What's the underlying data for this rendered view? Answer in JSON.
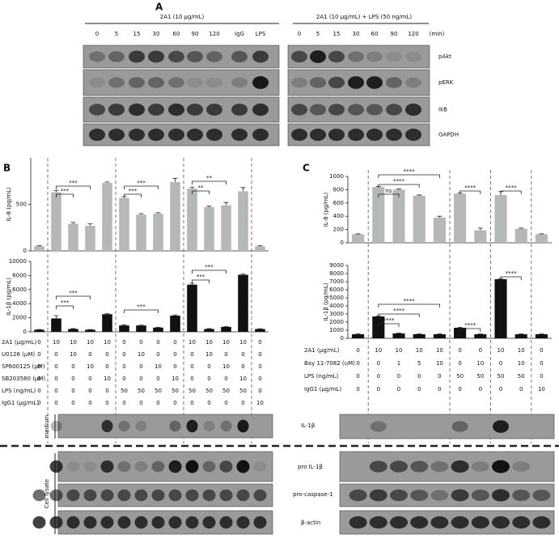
{
  "panels": [
    "A",
    "B",
    "C"
  ],
  "panel_a": {
    "headers": [
      "2A1 (10 μg/mL)",
      "2A1 (10 μg/mL) + LPS (50 ng/mL)"
    ],
    "lanes_left": [
      "0",
      "5",
      "15",
      "30",
      "60",
      "90",
      "120",
      "IgG",
      "LPS"
    ],
    "lanes_right": [
      "0",
      "5",
      "15",
      "30",
      "60",
      "90",
      "120",
      "(min)"
    ],
    "blots": [
      "pAkt",
      "pERK",
      "IkB",
      "GAPDH"
    ]
  },
  "chart_data": [
    {
      "type": "bar",
      "y_label": "IL-8 (pg/mL)",
      "color": "#b5b9b5",
      "values": [
        50,
        630,
        290,
        270,
        730,
        570,
        390,
        400,
        740,
        670,
        470,
        490,
        640,
        50
      ],
      "errors": [
        5,
        20,
        15,
        20,
        10,
        15,
        10,
        10,
        40,
        15,
        10,
        30,
        40,
        5
      ],
      "ylim": [
        0,
        1000
      ],
      "yticks": [
        0,
        500
      ],
      "annotations": [
        "***",
        "***",
        "***",
        "***",
        "**",
        "**"
      ]
    },
    {
      "type": "bar",
      "y_label": "IL-1β (pg/mL)",
      "color": "#111111",
      "values": [
        300,
        1900,
        400,
        300,
        2500,
        900,
        900,
        600,
        2300,
        6700,
        400,
        700,
        8100,
        400
      ],
      "errors": [
        30,
        400,
        50,
        30,
        100,
        100,
        50,
        50,
        100,
        200,
        50,
        50,
        100,
        30
      ],
      "ylim": [
        0,
        10000
      ],
      "yticks": [
        0,
        2000,
        4000,
        6000,
        8000,
        10000
      ],
      "annotations": [
        "***",
        "***",
        "***",
        "***",
        "***"
      ]
    },
    {
      "type": "bar",
      "y_label": "IL-8 (pg/mL)",
      "color": "#b5b9b5",
      "values": [
        130,
        840,
        800,
        710,
        380,
        740,
        190,
        720,
        210,
        130
      ],
      "errors": [
        5,
        10,
        10,
        10,
        20,
        10,
        30,
        50,
        10,
        5
      ],
      "ylim": [
        0,
        1000
      ],
      "yticks": [
        0,
        200,
        400,
        600,
        800,
        1000
      ],
      "annotations": [
        "ns",
        "****",
        "****",
        "****",
        "****"
      ]
    },
    {
      "type": "bar",
      "y_label": "IL-1β (pg/mL)",
      "color": "#111111",
      "values": [
        500,
        2700,
        600,
        500,
        500,
        1300,
        500,
        7300,
        500,
        500
      ],
      "errors": [
        30,
        80,
        40,
        30,
        30,
        60,
        30,
        80,
        30,
        30
      ],
      "ylim": [
        0,
        9000
      ],
      "yticks": [
        0,
        1000,
        2000,
        3000,
        4000,
        5000,
        6000,
        7000,
        8000,
        9000
      ],
      "annotations": [
        "****",
        "****",
        "****",
        "****",
        "****"
      ]
    }
  ],
  "table_b": [
    {
      "label": "2A1 (μg/mL)",
      "values": [
        0,
        10,
        10,
        10,
        10,
        0,
        0,
        0,
        0,
        10,
        10,
        10,
        10,
        0
      ]
    },
    {
      "label": "U0126 (μM)",
      "values": [
        0,
        0,
        10,
        0,
        0,
        0,
        10,
        0,
        0,
        0,
        10,
        0,
        0,
        0
      ]
    },
    {
      "label": "SP600125 (μM)",
      "values": [
        0,
        0,
        0,
        10,
        0,
        0,
        0,
        10,
        0,
        0,
        0,
        10,
        0,
        0
      ]
    },
    {
      "label": "SB203580 (μM)",
      "values": [
        0,
        0,
        0,
        0,
        10,
        0,
        0,
        0,
        10,
        0,
        0,
        0,
        10,
        0
      ]
    },
    {
      "label": "LPS (ng/mL)",
      "values": [
        0,
        0,
        0,
        0,
        0,
        50,
        50,
        50,
        50,
        50,
        50,
        50,
        50,
        0
      ]
    },
    {
      "label": "IgG1 (μg/mL)",
      "values": [
        0,
        0,
        0,
        0,
        0,
        0,
        0,
        0,
        0,
        0,
        0,
        0,
        0,
        10
      ]
    }
  ],
  "table_c": [
    {
      "label": "2A1 (μg/mL)",
      "values": [
        0,
        10,
        10,
        10,
        10,
        0,
        0,
        10,
        10,
        0
      ]
    },
    {
      "label": "Bay 11-7082 (uM)",
      "values": [
        0,
        0,
        1,
        5,
        10,
        0,
        10,
        0,
        10,
        0
      ]
    },
    {
      "label": "LPS (ng/mL)",
      "values": [
        0,
        0,
        0,
        0,
        0,
        50,
        50,
        50,
        50,
        0
      ]
    },
    {
      "label": "IgG1 (μg/mL)",
      "values": [
        0,
        0,
        0,
        0,
        0,
        0,
        0,
        0,
        0,
        10
      ]
    }
  ],
  "blot_labels": {
    "medium": "medium",
    "lysate": "Cell lysate",
    "rows": [
      "IL-1β",
      "pro IL-1β",
      "pro-caspase-1",
      "β-actin"
    ]
  }
}
